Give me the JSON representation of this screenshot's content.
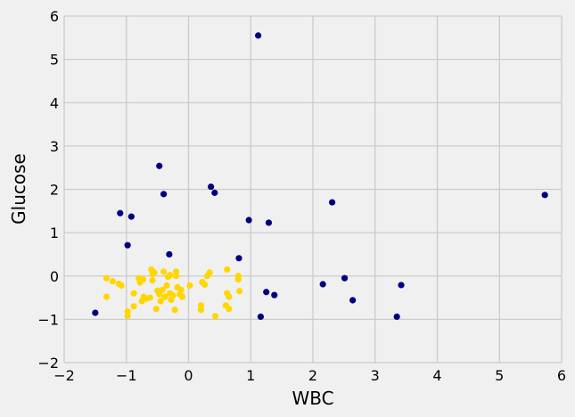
{
  "chart_data": {
    "type": "scatter",
    "title": "",
    "xlabel": "WBC",
    "ylabel": "Glucose",
    "xlim": [
      -2,
      6
    ],
    "ylim": [
      -2,
      6
    ],
    "xticks": [
      -2,
      -1,
      0,
      1,
      2,
      3,
      4,
      5,
      6
    ],
    "yticks": [
      -2,
      -1,
      0,
      1,
      2,
      3,
      4,
      5,
      6
    ],
    "grid": true,
    "legend": false,
    "series": [
      {
        "color": "#00007f",
        "points": [
          [
            1.12,
            5.55
          ],
          [
            -0.47,
            2.54
          ],
          [
            0.36,
            2.06
          ],
          [
            0.42,
            1.92
          ],
          [
            -0.4,
            1.89
          ],
          [
            5.73,
            1.87
          ],
          [
            2.31,
            1.7
          ],
          [
            -1.1,
            1.45
          ],
          [
            -0.92,
            1.37
          ],
          [
            0.97,
            1.29
          ],
          [
            1.29,
            1.23
          ],
          [
            -0.98,
            0.71
          ],
          [
            -0.31,
            0.5
          ],
          [
            0.81,
            0.41
          ],
          [
            2.51,
            -0.05
          ],
          [
            2.16,
            -0.19
          ],
          [
            3.42,
            -0.21
          ],
          [
            1.25,
            -0.37
          ],
          [
            1.38,
            -0.44
          ],
          [
            2.64,
            -0.56
          ],
          [
            -1.5,
            -0.85
          ],
          [
            1.16,
            -0.94
          ],
          [
            3.35,
            -0.94
          ]
        ]
      },
      {
        "color": "#ffd700",
        "points": [
          [
            -1.32,
            -0.05
          ],
          [
            -1.22,
            -0.12
          ],
          [
            -1.12,
            -0.18
          ],
          [
            -1.08,
            -0.22
          ],
          [
            -1.32,
            -0.48
          ],
          [
            -0.98,
            -0.82
          ],
          [
            -0.98,
            -0.92
          ],
          [
            -0.88,
            -0.4
          ],
          [
            -0.88,
            -0.7
          ],
          [
            -0.8,
            -0.05
          ],
          [
            -0.78,
            -0.15
          ],
          [
            -0.75,
            -0.58
          ],
          [
            -0.73,
            -0.08
          ],
          [
            -0.72,
            -0.48
          ],
          [
            -0.68,
            -0.52
          ],
          [
            -0.62,
            -0.5
          ],
          [
            -0.6,
            0.15
          ],
          [
            -0.58,
            0.05
          ],
          [
            -0.58,
            -0.1
          ],
          [
            -0.55,
            0.08
          ],
          [
            -0.52,
            -0.76
          ],
          [
            -0.5,
            -0.34
          ],
          [
            -0.47,
            -0.42
          ],
          [
            -0.45,
            -0.58
          ],
          [
            -0.42,
            -0.32
          ],
          [
            -0.4,
            0.1
          ],
          [
            -0.38,
            -0.48
          ],
          [
            -0.35,
            -0.22
          ],
          [
            -0.33,
            -0.02
          ],
          [
            -0.3,
            0.02
          ],
          [
            -0.3,
            -0.4
          ],
          [
            -0.28,
            -0.55
          ],
          [
            -0.25,
            -0.45
          ],
          [
            -0.22,
            -0.78
          ],
          [
            -0.2,
            0.1
          ],
          [
            -0.2,
            0.0
          ],
          [
            -0.18,
            -0.26
          ],
          [
            -0.14,
            -0.42
          ],
          [
            -0.12,
            -0.32
          ],
          [
            -0.1,
            -0.48
          ],
          [
            0.02,
            -0.22
          ],
          [
            0.2,
            -0.68
          ],
          [
            0.2,
            -0.78
          ],
          [
            0.22,
            -0.14
          ],
          [
            0.26,
            -0.2
          ],
          [
            0.3,
            0.0
          ],
          [
            0.34,
            0.08
          ],
          [
            0.43,
            -0.93
          ],
          [
            0.6,
            -0.68
          ],
          [
            0.62,
            0.15
          ],
          [
            0.62,
            -0.4
          ],
          [
            0.65,
            -0.48
          ],
          [
            0.65,
            -0.76
          ],
          [
            0.8,
            0.0
          ],
          [
            0.8,
            -0.08
          ],
          [
            0.82,
            -0.35
          ]
        ]
      }
    ]
  }
}
